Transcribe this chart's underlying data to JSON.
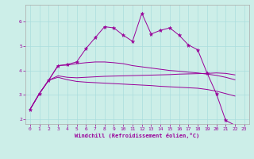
{
  "xlabel": "Windchill (Refroidissement éolien,°C)",
  "bg_color": "#cceee8",
  "line_color": "#990099",
  "grid_color": "#aadddd",
  "xlim": [
    -0.5,
    23.5
  ],
  "ylim": [
    1.8,
    6.7
  ],
  "yticks": [
    2,
    3,
    4,
    5,
    6
  ],
  "xticks": [
    0,
    1,
    2,
    3,
    4,
    5,
    6,
    7,
    8,
    9,
    10,
    11,
    12,
    13,
    14,
    15,
    16,
    17,
    18,
    19,
    20,
    21,
    22,
    23
  ],
  "line_main": {
    "x": [
      0,
      1,
      2,
      3,
      4,
      5,
      6,
      7,
      8,
      9,
      10,
      11,
      12,
      13,
      14,
      15,
      16,
      17,
      18,
      19,
      20,
      21,
      22
    ],
    "y": [
      2.4,
      3.05,
      3.6,
      4.2,
      4.25,
      4.35,
      4.9,
      5.35,
      5.8,
      5.75,
      5.45,
      5.2,
      6.35,
      5.5,
      5.65,
      5.75,
      5.45,
      5.05,
      4.85,
      3.9,
      3.05,
      1.95,
      1.75
    ]
  },
  "line_flat1": {
    "x": [
      0,
      1,
      2,
      3,
      4,
      5,
      6,
      7,
      8,
      9,
      10,
      11,
      12,
      13,
      14,
      15,
      16,
      17,
      18,
      19,
      20,
      21,
      22
    ],
    "y": [
      2.4,
      3.05,
      3.6,
      3.72,
      3.62,
      3.55,
      3.52,
      3.5,
      3.48,
      3.46,
      3.44,
      3.42,
      3.4,
      3.38,
      3.35,
      3.33,
      3.31,
      3.29,
      3.27,
      3.22,
      3.15,
      3.05,
      2.95
    ]
  },
  "line_flat2": {
    "x": [
      0,
      1,
      2,
      3,
      4,
      5,
      6,
      7,
      8,
      9,
      10,
      11,
      12,
      13,
      14,
      15,
      16,
      17,
      18,
      19,
      20,
      21,
      22
    ],
    "y": [
      2.4,
      3.05,
      3.6,
      3.78,
      3.72,
      3.7,
      3.72,
      3.74,
      3.76,
      3.77,
      3.78,
      3.79,
      3.8,
      3.81,
      3.82,
      3.83,
      3.85,
      3.86,
      3.87,
      3.88,
      3.9,
      3.88,
      3.82
    ]
  },
  "line_upper": {
    "x": [
      0,
      1,
      2,
      3,
      4,
      5,
      6,
      7,
      8,
      9,
      10,
      11,
      12,
      13,
      14,
      15,
      16,
      17,
      18,
      19,
      20,
      21,
      22
    ],
    "y": [
      2.4,
      3.05,
      3.6,
      4.2,
      4.22,
      4.28,
      4.32,
      4.35,
      4.35,
      4.32,
      4.28,
      4.2,
      4.15,
      4.1,
      4.05,
      4.0,
      3.97,
      3.93,
      3.9,
      3.85,
      3.8,
      3.72,
      3.62
    ]
  }
}
